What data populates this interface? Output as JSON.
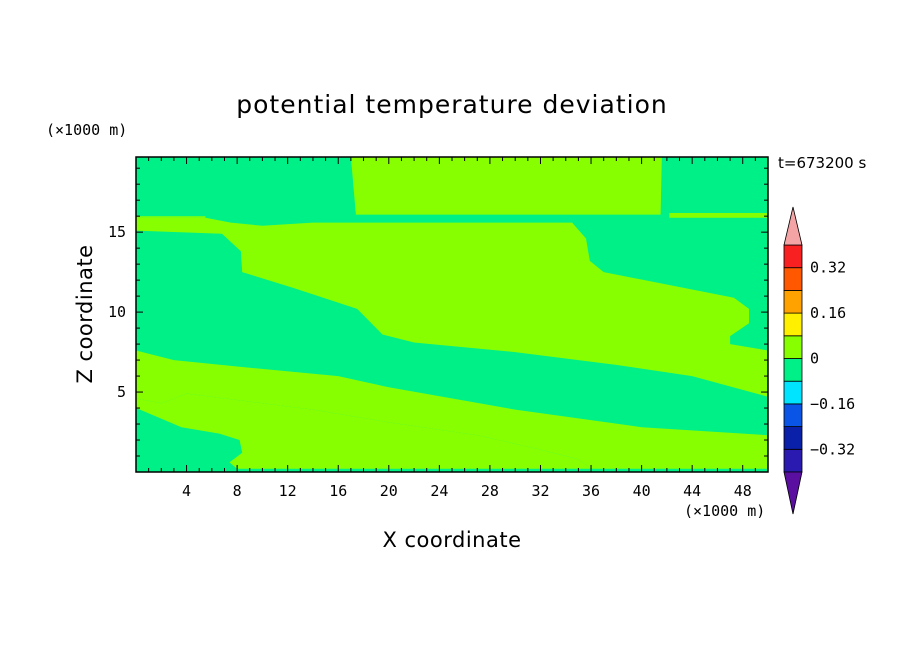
{
  "chart_data": {
    "type": "heatmap",
    "title": "potential temperature deviation",
    "xlabel": "X coordinate",
    "ylabel": "Z coordinate",
    "x_units": "(×1000 m)",
    "y_units": "(×1000 m)",
    "time_label": "t=673200 s",
    "xlim": [
      0,
      50
    ],
    "ylim": [
      0,
      19.7
    ],
    "x_ticks": [
      4,
      8,
      12,
      16,
      20,
      24,
      28,
      32,
      36,
      40,
      44,
      48
    ],
    "y_ticks": [
      5,
      10,
      15
    ],
    "colorbar": {
      "levels": [
        -0.4,
        -0.32,
        -0.24,
        -0.16,
        -0.08,
        0,
        0.08,
        0.16,
        0.24,
        0.32,
        0.4
      ],
      "labels": [
        0.32,
        0.16,
        0,
        -0.16,
        -0.32
      ],
      "label_text": [
        "0.32",
        "0.16",
        "0",
        "−0.16",
        "−0.32"
      ],
      "colors": [
        "#5a0fa0",
        "#2a1ab0",
        "#0a20a8",
        "#0a55e6",
        "#00e4ff",
        "#00f088",
        "#88ff00",
        "#fff000",
        "#ffa200",
        "#ff5800",
        "#f82020",
        "#f4a4a4"
      ],
      "extend": "both"
    },
    "regions": [
      {
        "name": "upper-left-band",
        "class": "0 to 0.08",
        "color": "#88ff00",
        "boundary": [
          [
            0,
            15.1
          ],
          [
            6.8,
            14.9
          ],
          [
            8.3,
            13.8
          ],
          [
            8.4,
            12.5
          ],
          [
            12.5,
            11.5
          ],
          [
            17.5,
            10.2
          ],
          [
            19.5,
            8.6
          ],
          [
            22,
            8.1
          ],
          [
            30,
            7.5
          ],
          [
            38,
            6.7
          ],
          [
            44,
            6.0
          ],
          [
            50,
            4.7
          ],
          [
            50,
            7.6
          ],
          [
            47,
            8.0
          ],
          [
            47,
            8.5
          ],
          [
            48.5,
            9.3
          ],
          [
            48.5,
            10.2
          ],
          [
            47.3,
            10.9
          ],
          [
            37,
            12.5
          ],
          [
            35.9,
            13.2
          ],
          [
            35.6,
            14.6
          ],
          [
            34.5,
            15.6
          ],
          [
            14,
            15.6
          ],
          [
            10,
            15.4
          ],
          [
            7.5,
            15.6
          ],
          [
            5.5,
            15.9
          ],
          [
            0,
            15.9
          ]
        ]
      },
      {
        "name": "middle-band",
        "class": "0 to 0.08",
        "color": "#88ff00",
        "boundary": [
          [
            0,
            7.6
          ],
          [
            3,
            7.0
          ],
          [
            8,
            6.6
          ],
          [
            16,
            6.0
          ],
          [
            20,
            5.3
          ],
          [
            30,
            3.9
          ],
          [
            40,
            2.8
          ],
          [
            50,
            2.3
          ],
          [
            50,
            0.2
          ],
          [
            36,
            0.2
          ],
          [
            35,
            0.8
          ],
          [
            32,
            1.4
          ],
          [
            27,
            2.3
          ],
          [
            20,
            3.1
          ],
          [
            14,
            3.9
          ],
          [
            8,
            4.5
          ],
          [
            4,
            4.9
          ],
          [
            2,
            4.3
          ],
          [
            0,
            4.6
          ]
        ]
      },
      {
        "name": "bottom-patch",
        "class": "0 to 0.08",
        "color": "#88ff00",
        "boundary": [
          [
            7.4,
            0.6
          ],
          [
            8.4,
            1.2
          ],
          [
            8.2,
            2.0
          ],
          [
            6.6,
            2.4
          ],
          [
            3.6,
            2.8
          ],
          [
            1.2,
            3.6
          ],
          [
            0,
            4.0
          ],
          [
            0,
            4.6
          ],
          [
            2,
            4.3
          ],
          [
            4,
            4.9
          ],
          [
            8,
            4.5
          ],
          [
            14,
            3.9
          ],
          [
            20,
            3.1
          ],
          [
            27,
            2.3
          ],
          [
            32,
            1.4
          ],
          [
            35,
            0.8
          ],
          [
            36,
            0.2
          ],
          [
            8,
            0.2
          ]
        ]
      },
      {
        "name": "top-center-block",
        "class": "0 to 0.08",
        "color": "#88ff00",
        "boundary": [
          [
            17,
            19.7
          ],
          [
            41.6,
            19.7
          ],
          [
            41.5,
            16.1
          ],
          [
            17.4,
            16.1
          ]
        ]
      },
      {
        "name": "top-right-strip",
        "class": "0 to 0.08",
        "color": "#88ff00",
        "boundary": [
          [
            42.2,
            16.2
          ],
          [
            50,
            16.2
          ],
          [
            50,
            15.9
          ],
          [
            42.2,
            15.9
          ]
        ]
      },
      {
        "name": "left-strip",
        "class": "0 to 0.08",
        "color": "#88ff00",
        "boundary": [
          [
            0,
            16.0
          ],
          [
            5.5,
            16.0
          ],
          [
            5.5,
            15.9
          ],
          [
            0,
            15.9
          ]
        ]
      }
    ],
    "background_class": "-0.08 to 0",
    "background_color": "#00f088"
  }
}
